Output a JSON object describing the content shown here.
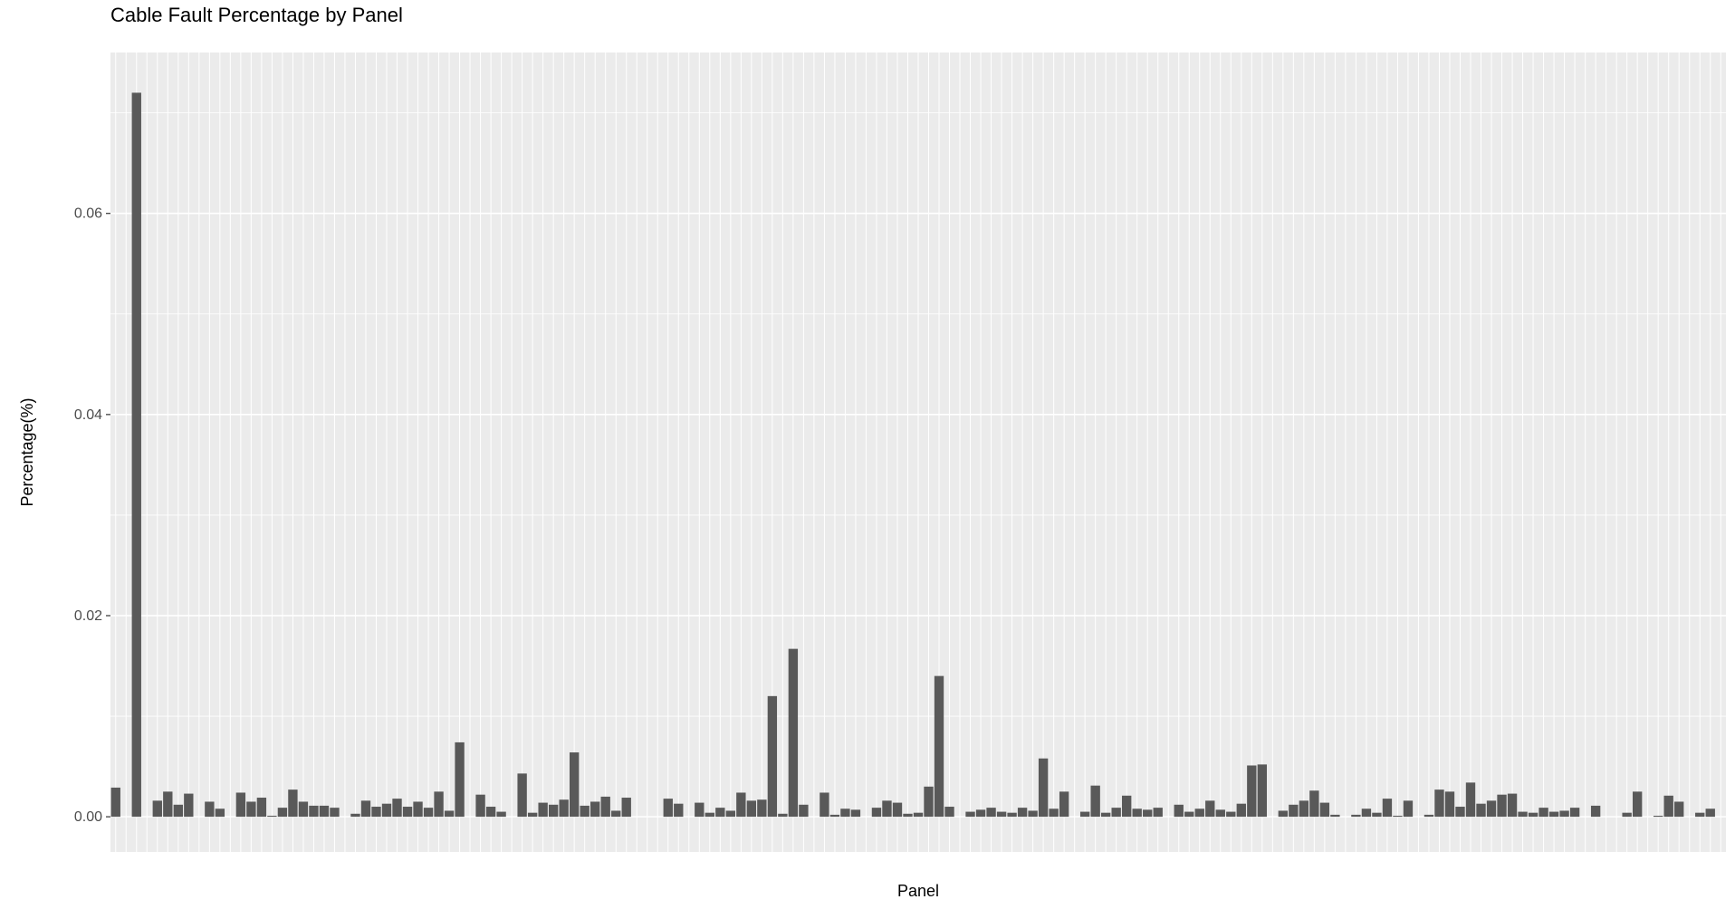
{
  "chart_data": {
    "type": "bar",
    "title": "Cable Fault Percentage by Panel",
    "xlabel": "Panel",
    "ylabel": "Percentage(%)",
    "ylim": [
      -0.0035,
      0.076
    ],
    "yticks": [
      0.0,
      0.02,
      0.04,
      0.06
    ],
    "ytick_labels": [
      "0.00",
      "0.02",
      "0.04",
      "0.06"
    ],
    "x_tick_labels_shown": false,
    "grid": true,
    "legend": "none",
    "colors": {
      "panel_bg": "#ebebeb",
      "grid": "#ffffff",
      "bar": "#595959"
    },
    "values": [
      0.0029,
      0,
      0.072,
      0,
      0.0016,
      0.0025,
      0.0012,
      0.0023,
      0,
      0.0015,
      0.0008,
      0,
      0.0024,
      0.0015,
      0.0019,
      0.0001,
      0.0009,
      0.0027,
      0.0015,
      0.0011,
      0.0011,
      0.0009,
      0,
      0.0003,
      0.0016,
      0.001,
      0.0013,
      0.0018,
      0.001,
      0.0015,
      0.0009,
      0.0025,
      0.0006,
      0.0074,
      0,
      0.0022,
      0.001,
      0.0005,
      0,
      0.0043,
      0.0004,
      0.0014,
      0.0012,
      0.0017,
      0.0064,
      0.0011,
      0.0015,
      0.002,
      0.0006,
      0.0019,
      0,
      0,
      0,
      0.0018,
      0.0013,
      0,
      0.0014,
      0.0004,
      0.0009,
      0.0006,
      0.0024,
      0.0016,
      0.0017,
      0.012,
      0.0003,
      0.0167,
      0.0012,
      0,
      0.0024,
      0.0002,
      0.0008,
      0.0007,
      0,
      0.0009,
      0.0016,
      0.0014,
      0.0003,
      0.0004,
      0.003,
      0.014,
      0.001,
      0,
      0.0005,
      0.0007,
      0.0009,
      0.0005,
      0.0004,
      0.0009,
      0.0006,
      0.0058,
      0.0008,
      0.0025,
      0,
      0.0005,
      0.0031,
      0.0004,
      0.0009,
      0.0021,
      0.0008,
      0.0007,
      0.0009,
      0,
      0.0012,
      0.0005,
      0.0008,
      0.0016,
      0.0007,
      0.0005,
      0.0013,
      0.0051,
      0.0052,
      0,
      0.0006,
      0.0012,
      0.0016,
      0.0026,
      0.0014,
      0.0002,
      0,
      0.0002,
      0.0008,
      0.0004,
      0.0018,
      0.0001,
      0.0016,
      0,
      0.0002,
      0.0027,
      0.0025,
      0.001,
      0.0034,
      0.0013,
      0.0016,
      0.0022,
      0.0023,
      0.0005,
      0.0004,
      0.0009,
      0.0005,
      0.0006,
      0.0009,
      0,
      0.0011,
      0,
      0,
      0.0004,
      0.0025,
      0,
      0.0001,
      0.0021,
      0.0015,
      0,
      0.0004,
      0.0008,
      0
    ]
  }
}
